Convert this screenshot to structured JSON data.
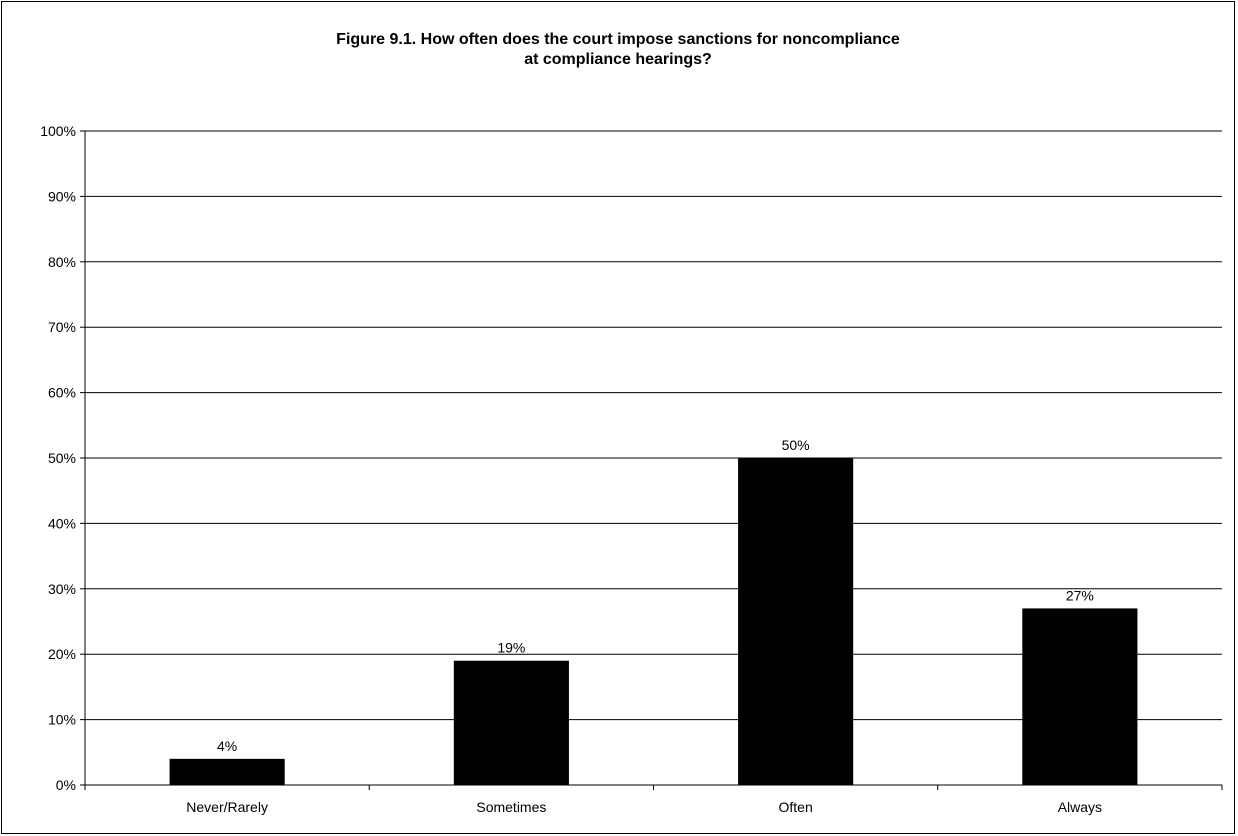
{
  "chart_data": {
    "type": "bar",
    "title_lines": [
      "Figure 9.1. How often does the court impose sanctions for noncompliance",
      "at compliance hearings?"
    ],
    "categories": [
      "Never/Rarely",
      "Sometimes",
      "Often",
      "Always"
    ],
    "values": [
      4,
      19,
      50,
      27
    ],
    "value_labels": [
      "4%",
      "19%",
      "50%",
      "27%"
    ],
    "ylim": [
      0,
      100
    ],
    "y_ticks": [
      0,
      10,
      20,
      30,
      40,
      50,
      60,
      70,
      80,
      90,
      100
    ],
    "y_tick_labels": [
      "0%",
      "10%",
      "20%",
      "30%",
      "40%",
      "50%",
      "60%",
      "70%",
      "80%",
      "90%",
      "100%"
    ],
    "xlabel": "",
    "ylabel": "",
    "grid": true,
    "legend": "none",
    "bar_color": "#000000"
  }
}
